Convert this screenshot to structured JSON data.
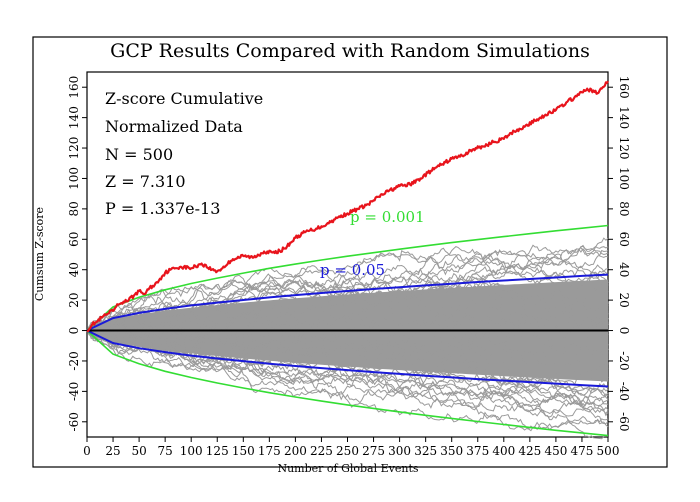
{
  "chart_data": {
    "type": "line",
    "title": "GCP Results Compared with Random Simulations",
    "xlabel": "Number of Global Events",
    "ylabel": "Cumsum Z-score",
    "xlim": [
      0,
      500
    ],
    "ylim": [
      -70,
      170
    ],
    "xticks": [
      0,
      25,
      50,
      75,
      100,
      125,
      150,
      175,
      200,
      225,
      250,
      275,
      300,
      325,
      350,
      375,
      400,
      425,
      450,
      475,
      500
    ],
    "xtick_labels": [
      "0",
      "25",
      "50",
      "75",
      "100",
      "125",
      "150",
      "175",
      "200",
      "225",
      "250",
      "275",
      "300",
      "325",
      "350",
      "375",
      "400",
      "425",
      "450",
      "475",
      "500"
    ],
    "yticks": [
      -60,
      -40,
      -20,
      0,
      20,
      40,
      60,
      80,
      100,
      120,
      140,
      160
    ],
    "ytick_labels": [
      "-60",
      "-40",
      "-20",
      "0",
      "20",
      "40",
      "60",
      "80",
      "100",
      "120",
      "140",
      "160"
    ],
    "info_lines": [
      "Z-score Cumulative",
      "Normalized Data",
      "N = 500",
      "Z = 7.310",
      "P = 1.337e-13"
    ],
    "envelope_labels": {
      "p001": "p = 0.001",
      "p05": "p = 0.05"
    },
    "colors": {
      "gcp": "#e8141c",
      "p001": "#33dd33",
      "p05": "#1a1ad8",
      "simulations": "#9a9a9a",
      "zero": "#000000"
    },
    "envelope_coefficients": {
      "p001": 3.09,
      "p05": 1.645
    },
    "simulation_band": {
      "core_sd": 1.5,
      "max_sd": 3.2,
      "description": "500 random cumulative Z-score simulations"
    },
    "series": [
      {
        "name": "GCP cumulative Z-score",
        "x": [
          0,
          5,
          10,
          15,
          20,
          25,
          30,
          35,
          40,
          45,
          50,
          55,
          60,
          65,
          70,
          75,
          80,
          85,
          90,
          100,
          110,
          120,
          125,
          130,
          140,
          150,
          160,
          170,
          180,
          190,
          200,
          210,
          220,
          230,
          240,
          250,
          260,
          270,
          280,
          290,
          300,
          310,
          320,
          330,
          340,
          350,
          360,
          370,
          380,
          390,
          400,
          410,
          420,
          430,
          440,
          450,
          460,
          470,
          480,
          490,
          495,
          500
        ],
        "y": [
          0,
          4,
          6,
          9,
          11,
          13,
          17,
          19,
          20,
          23,
          26,
          24,
          28,
          30,
          34,
          38,
          40,
          41,
          42,
          41,
          44,
          40,
          39,
          41,
          47,
          49,
          48,
          52,
          51,
          54,
          61,
          65,
          67,
          70,
          74,
          77,
          80,
          83,
          88,
          92,
          95,
          96,
          100,
          105,
          109,
          113,
          115,
          119,
          121,
          124,
          126,
          131,
          134,
          138,
          142,
          145,
          150,
          154,
          159,
          156,
          160,
          164
        ]
      },
      {
        "name": "p = 0.001 envelope",
        "x": [
          0,
          25,
          50,
          75,
          100,
          125,
          150,
          175,
          200,
          225,
          250,
          275,
          300,
          325,
          350,
          375,
          400,
          425,
          450,
          475,
          500
        ],
        "y_upper": [
          0,
          15.5,
          21.9,
          26.8,
          30.9,
          34.5,
          37.8,
          40.9,
          43.7,
          46.4,
          48.9,
          51.2,
          53.5,
          55.7,
          57.8,
          59.8,
          61.8,
          63.7,
          65.6,
          67.3,
          69.1
        ],
        "y_lower": [
          0,
          -15.5,
          -21.9,
          -26.8,
          -30.9,
          -34.5,
          -37.8,
          -40.9,
          -43.7,
          -46.4,
          -48.9,
          -51.2,
          -53.5,
          -55.7,
          -57.8,
          -59.8,
          -61.8,
          -63.7,
          -65.6,
          -67.3,
          -69.1
        ]
      },
      {
        "name": "p = 0.05 envelope",
        "x": [
          0,
          25,
          50,
          75,
          100,
          125,
          150,
          175,
          200,
          225,
          250,
          275,
          300,
          325,
          350,
          375,
          400,
          425,
          450,
          475,
          500
        ],
        "y_upper": [
          0,
          8.2,
          11.6,
          14.2,
          16.5,
          18.4,
          20.1,
          21.8,
          23.3,
          24.7,
          26.0,
          27.3,
          28.5,
          29.7,
          30.8,
          31.9,
          32.9,
          33.9,
          34.9,
          35.9,
          36.8
        ],
        "y_lower": [
          0,
          -8.2,
          -11.6,
          -14.2,
          -16.5,
          -18.4,
          -20.1,
          -21.8,
          -23.3,
          -24.7,
          -26.0,
          -27.3,
          -28.5,
          -29.7,
          -30.8,
          -31.9,
          -32.9,
          -33.9,
          -34.9,
          -35.9,
          -36.8
        ]
      }
    ]
  }
}
